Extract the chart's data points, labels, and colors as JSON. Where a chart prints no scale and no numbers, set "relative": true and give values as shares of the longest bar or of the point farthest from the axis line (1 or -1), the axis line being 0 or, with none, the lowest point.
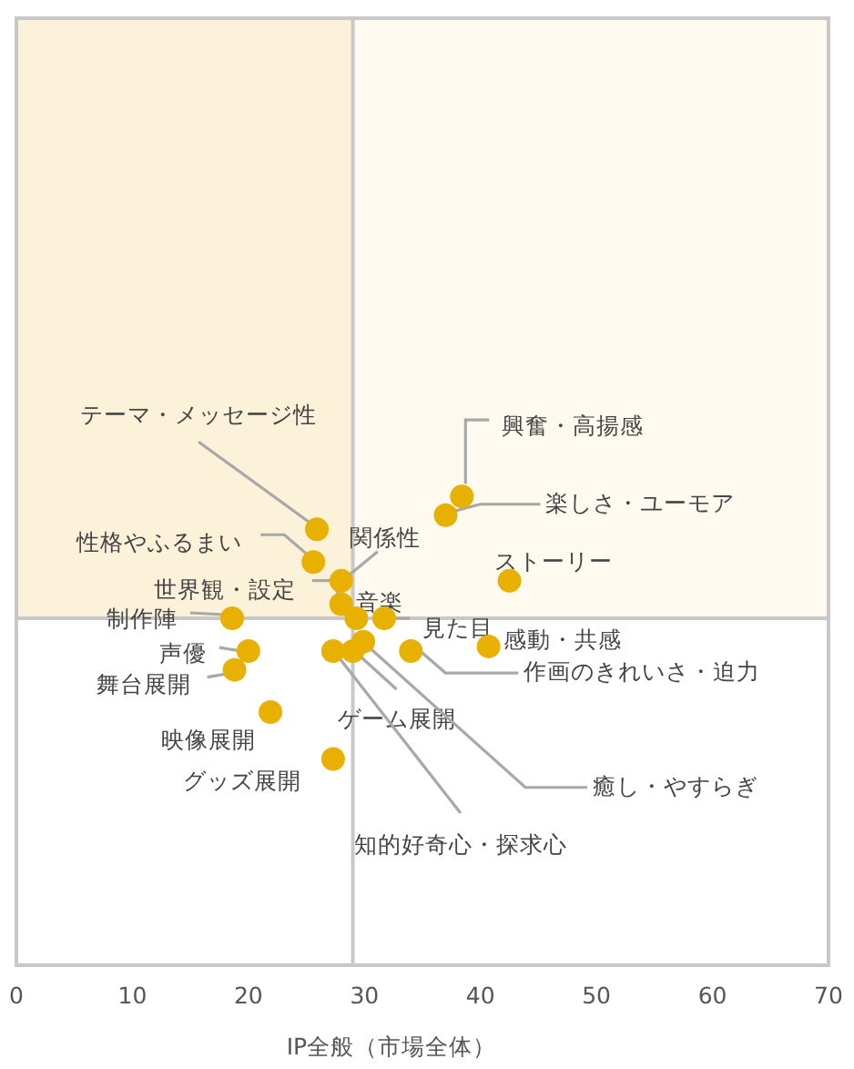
{
  "chart_data": {
    "type": "scatter",
    "relative": true,
    "xlabel": "IP全般（市場全体）",
    "xlim": [
      0,
      70
    ],
    "xticks": [
      0,
      10,
      20,
      30,
      40,
      50,
      60,
      70
    ],
    "grid": false,
    "marker": "circle",
    "tick_labels": "x",
    "x": [
      25.9,
      38.4,
      37.0,
      25.6,
      42.5,
      28.0,
      28.0,
      29.3,
      31.7,
      18.6,
      20.0,
      18.8,
      40.7,
      34.0,
      29.0,
      29.9,
      27.3,
      21.9,
      27.3
    ],
    "series": [
      {
        "color": "#e8b000",
        "values": [
          0.93,
          1.0,
          0.96,
          0.86,
          0.82,
          0.82,
          0.77,
          0.74,
          0.74,
          0.74,
          0.67,
          0.63,
          0.68,
          0.67,
          0.67,
          0.69,
          0.67,
          0.54,
          0.44
        ]
      }
    ],
    "ref_lines": [
      {
        "axis": "x",
        "value": 29,
        "color": "#c8c8c8"
      },
      {
        "axis": "y",
        "value": 0.74,
        "color": "#c8c8c8"
      }
    ],
    "bands": [
      {
        "axis": "y",
        "from": 0.74,
        "to": 2.02,
        "color": "#fffaf0"
      },
      {
        "axis": "x",
        "from": 0,
        "to": 29,
        "color": "#fcf2da"
      }
    ],
    "annotations": [
      {
        "text": "テーマ・メッセージ性",
        "x": 25.9,
        "y": 0.93
      },
      {
        "text": "興奮・高揚感",
        "x": 38.4,
        "y": 1.0
      },
      {
        "text": "楽しさ・ユーモア",
        "x": 37.0,
        "y": 0.96
      },
      {
        "text": "性格やふるまい",
        "x": 25.6,
        "y": 0.86
      },
      {
        "text": "ストーリー",
        "x": 42.5,
        "y": 0.82
      },
      {
        "text": "関係性",
        "x": 28.0,
        "y": 0.82
      },
      {
        "text": "世界観・設定",
        "x": 28.0,
        "y": 0.77
      },
      {
        "text": "音楽",
        "x": 29.3,
        "y": 0.74
      },
      {
        "text": "見た目",
        "x": 31.7,
        "y": 0.74
      },
      {
        "text": "制作陣",
        "x": 18.6,
        "y": 0.74
      },
      {
        "text": "声優",
        "x": 20.0,
        "y": 0.67
      },
      {
        "text": "舞台展開",
        "x": 18.8,
        "y": 0.63
      },
      {
        "text": "感動・共感",
        "x": 40.7,
        "y": 0.68
      },
      {
        "text": "作画のきれいさ・迫力",
        "x": 34.0,
        "y": 0.67
      },
      {
        "text": "ゲーム展開",
        "x": 29.0,
        "y": 0.67
      },
      {
        "text": "癒し・やすらぎ",
        "x": 29.9,
        "y": 0.69
      },
      {
        "text": "知的好奇心・探求心",
        "x": 27.3,
        "y": 0.67
      },
      {
        "text": "映像展開",
        "x": 21.9,
        "y": 0.54
      },
      {
        "text": "グッズ展開",
        "x": 27.3,
        "y": 0.44
      }
    ]
  }
}
